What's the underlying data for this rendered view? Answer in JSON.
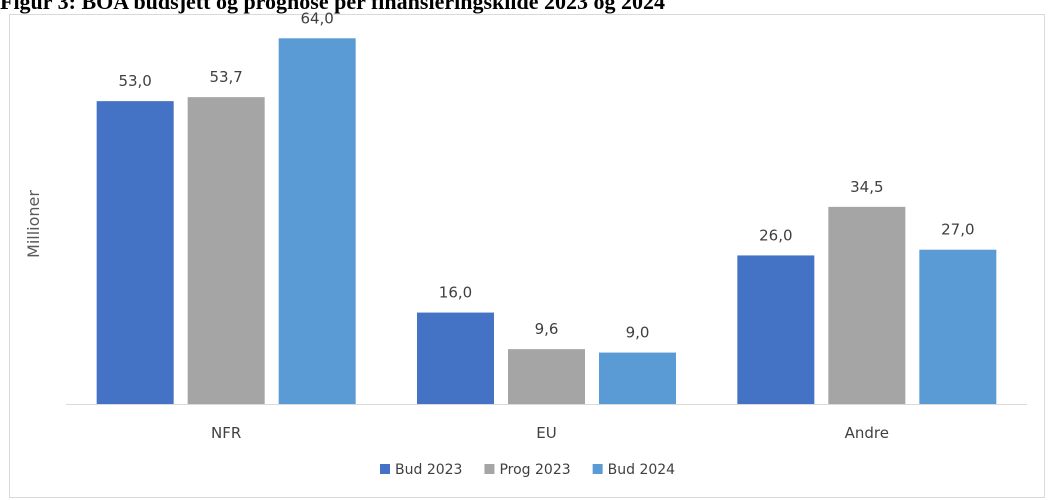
{
  "title": "Figur 3: BOA budsjett og prognose per finansieringskilde 2023 og 2024",
  "chart_data": {
    "type": "bar",
    "categories": [
      "NFR",
      "EU",
      "Andre"
    ],
    "ylabel": "Millioner",
    "xlabel": "",
    "ylim": [
      0,
      70
    ],
    "legend_position": "bottom",
    "grid": false,
    "series": [
      {
        "name": "Bud 2023",
        "color": "#4472c4",
        "values": [
          53.0,
          16.0,
          26.0
        ],
        "labels": [
          "53,0",
          "16,0",
          "26,0"
        ]
      },
      {
        "name": "Prog 2023",
        "color": "#a5a5a5",
        "values": [
          53.7,
          9.6,
          34.5
        ],
        "labels": [
          "53,7",
          "9,6",
          "34,5"
        ]
      },
      {
        "name": "Bud 2024",
        "color": "#5b9bd5",
        "values": [
          64.0,
          9.0,
          27.0
        ],
        "labels": [
          "64,0",
          "9,0",
          "27,0"
        ]
      }
    ]
  }
}
